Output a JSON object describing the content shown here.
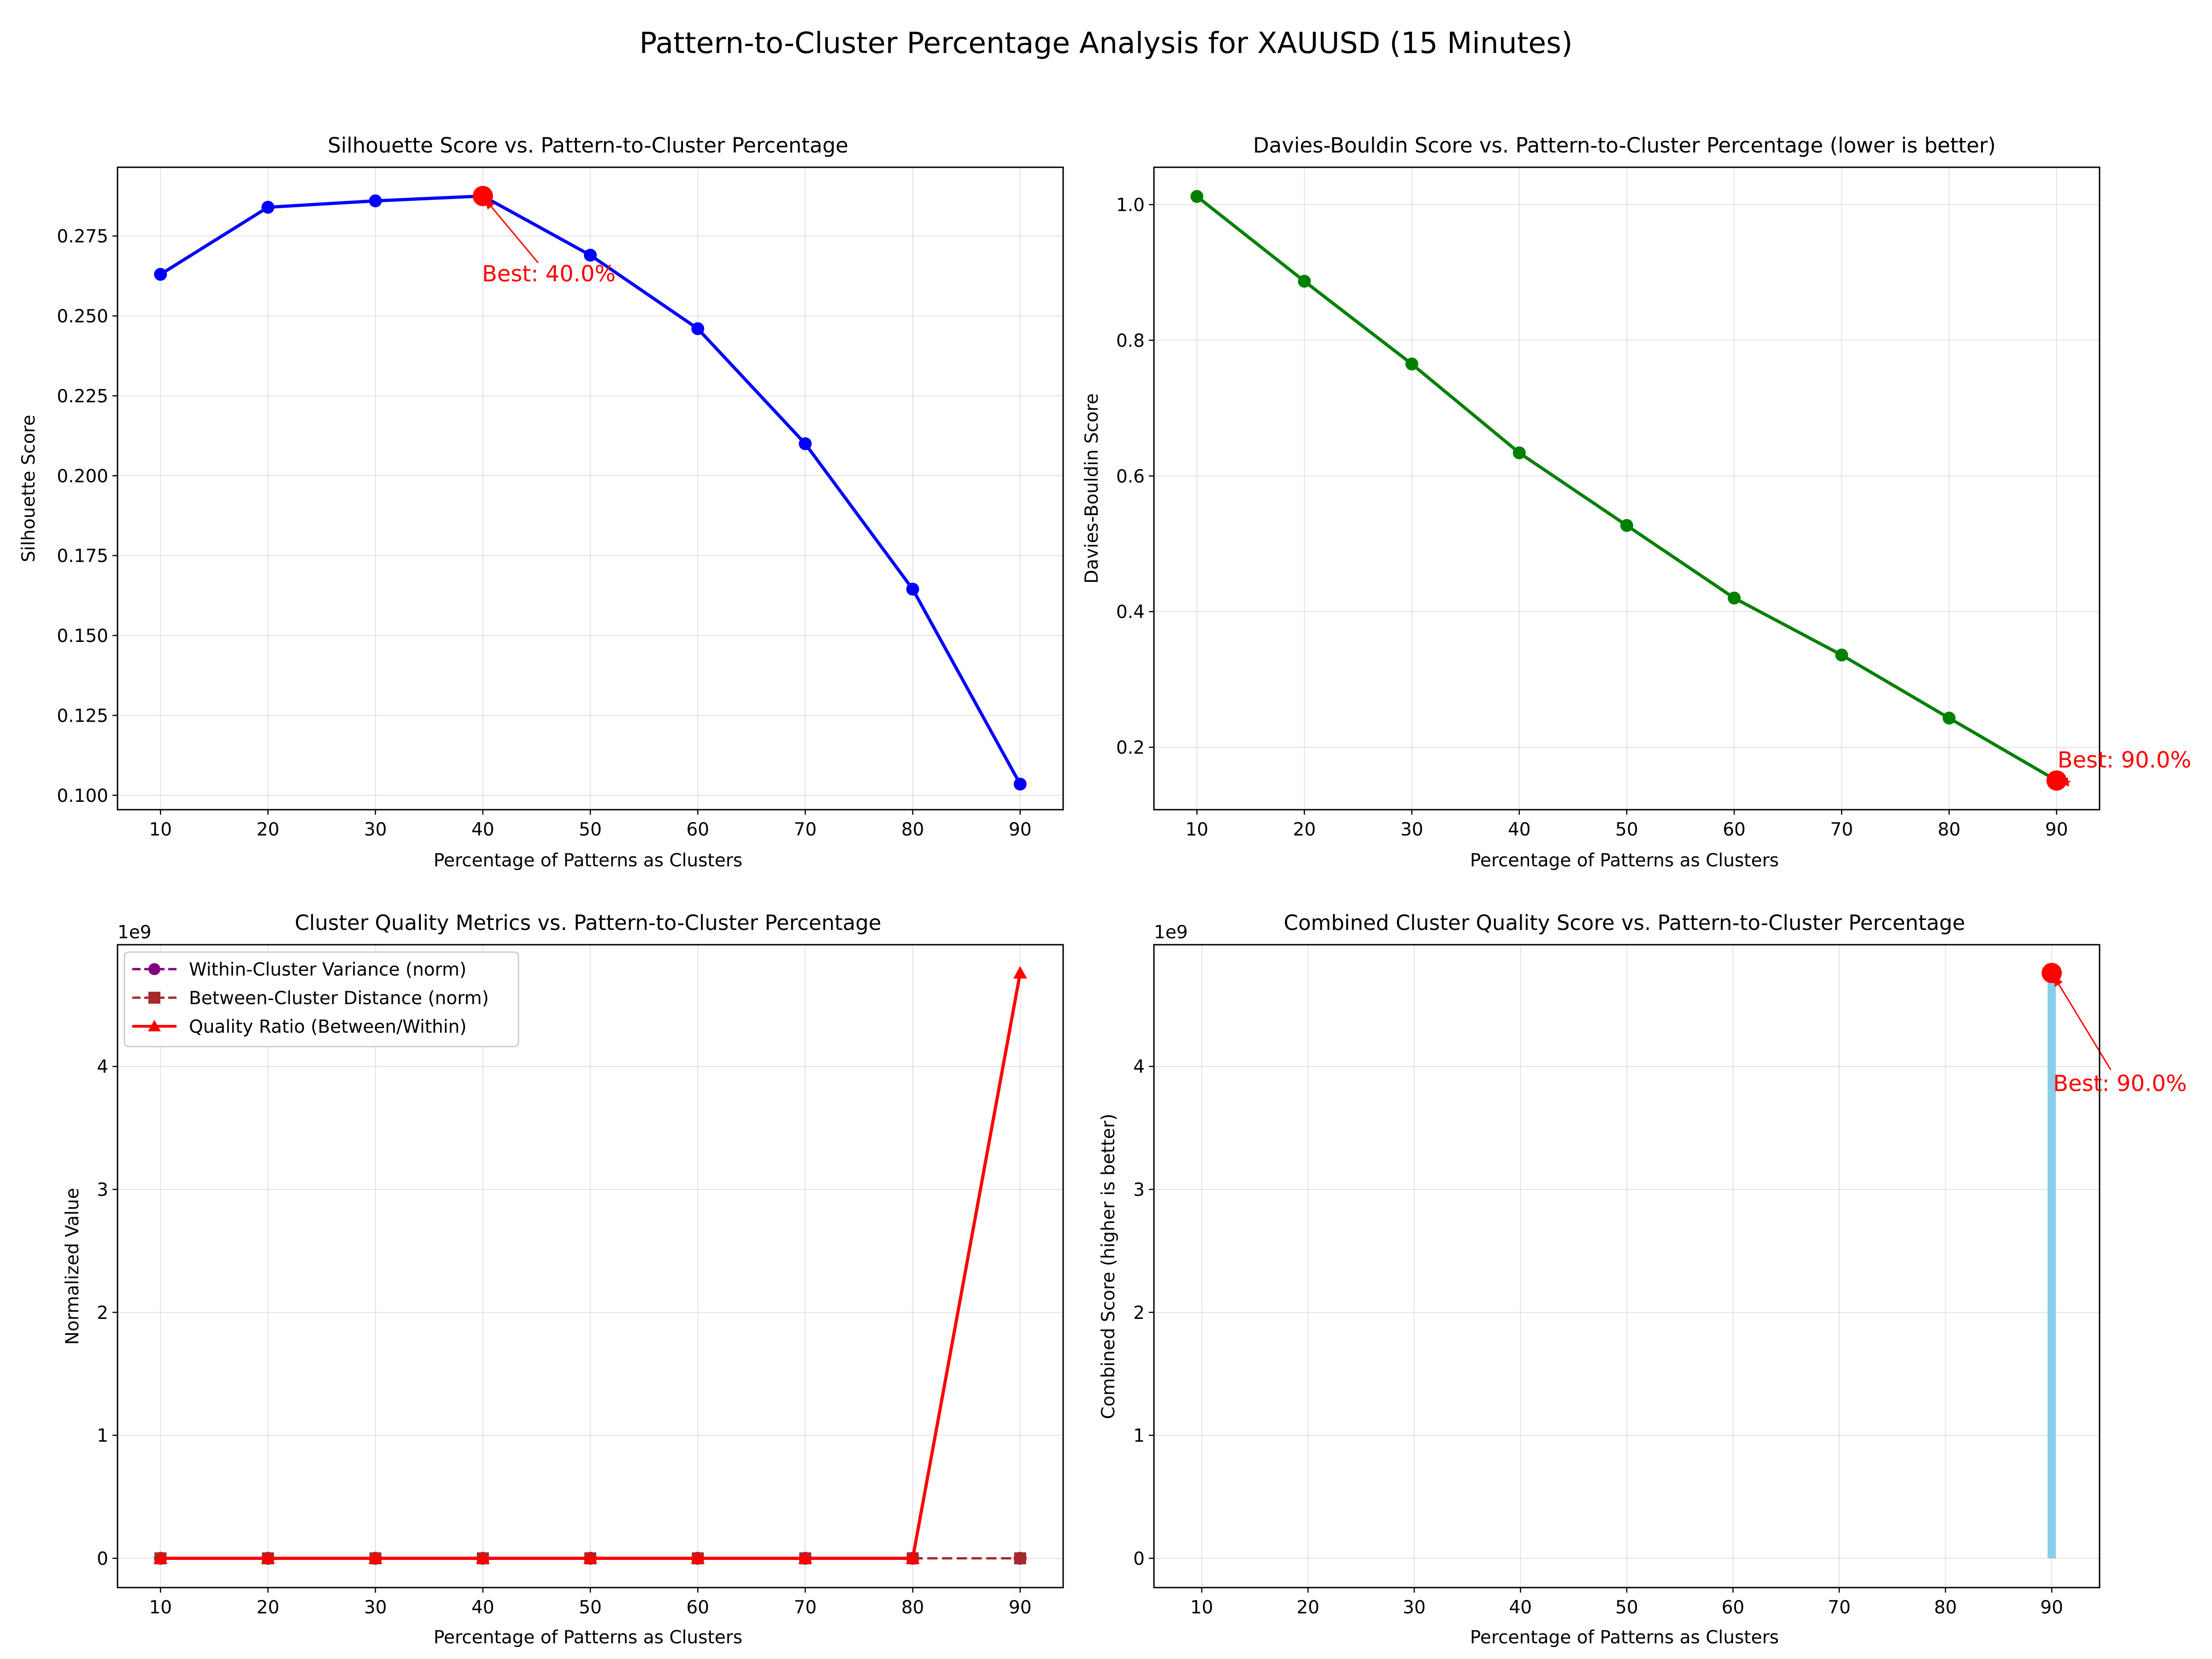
{
  "figure": {
    "title": "Pattern-to-Cluster Percentage Analysis for XAUUSD (15 Minutes)"
  },
  "chart_data": [
    {
      "type": "line",
      "title": "Silhouette Score vs. Pattern-to-Cluster Percentage",
      "xlabel": "Percentage of Patterns as Clusters",
      "ylabel": "Silhouette Score",
      "x": [
        10,
        20,
        30,
        40,
        50,
        60,
        70,
        80,
        90
      ],
      "xlim": [
        6,
        94
      ],
      "ylim": [
        0.0955,
        0.2965
      ],
      "xticks": [
        10,
        20,
        30,
        40,
        50,
        60,
        70,
        80,
        90
      ],
      "yticks": [
        0.1,
        0.125,
        0.15,
        0.175,
        0.2,
        0.225,
        0.25,
        0.275
      ],
      "ytick_labels": [
        "0.100",
        "0.125",
        "0.150",
        "0.175",
        "0.200",
        "0.225",
        "0.250",
        "0.275"
      ],
      "series": [
        {
          "values": [
            0.263,
            0.284,
            0.286,
            0.2875,
            0.269,
            0.246,
            0.21,
            0.1645,
            0.1035
          ],
          "color": "#0000ff",
          "marker": "circle"
        }
      ],
      "highlight": {
        "x": 40,
        "y": 0.2875,
        "color": "#ff0000"
      },
      "annotation": {
        "text": "Best: 40.0%",
        "color": "#ff0000"
      },
      "grid": true
    },
    {
      "type": "line",
      "title": "Davies-Bouldin Score vs. Pattern-to-Cluster Percentage (lower is better)",
      "xlabel": "Percentage of Patterns as Clusters",
      "ylabel": "Davies-Bouldin Score",
      "x": [
        10,
        20,
        30,
        40,
        50,
        60,
        70,
        80,
        90
      ],
      "xlim": [
        6,
        94
      ],
      "ylim": [
        0.108,
        1.055
      ],
      "xticks": [
        10,
        20,
        30,
        40,
        50,
        60,
        70,
        80,
        90
      ],
      "yticks": [
        0.2,
        0.4,
        0.6,
        0.8,
        1.0
      ],
      "ytick_labels": [
        "0.2",
        "0.4",
        "0.6",
        "0.8",
        "1.0"
      ],
      "series": [
        {
          "values": [
            1.012,
            0.887,
            0.765,
            0.634,
            0.527,
            0.42,
            0.336,
            0.243,
            0.151
          ],
          "color": "#008000",
          "marker": "circle"
        }
      ],
      "highlight": {
        "x": 90,
        "y": 0.151,
        "color": "#ff0000"
      },
      "annotation": {
        "text": "Best: 90.0%",
        "color": "#ff0000"
      },
      "grid": true
    },
    {
      "type": "line",
      "title": "Cluster Quality Metrics vs. Pattern-to-Cluster Percentage",
      "xlabel": "Percentage of Patterns as Clusters",
      "ylabel": "Normalized Value",
      "offset_label": "1e9",
      "x": [
        10,
        20,
        30,
        40,
        50,
        60,
        70,
        80,
        90
      ],
      "xlim": [
        6,
        94
      ],
      "ylim": [
        -0.238,
        4.99
      ],
      "xticks": [
        10,
        20,
        30,
        40,
        50,
        60,
        70,
        80,
        90
      ],
      "yticks": [
        0,
        1,
        2,
        3,
        4
      ],
      "ytick_labels": [
        "0",
        "1",
        "2",
        "3",
        "4"
      ],
      "legend_position": "upper-left",
      "series": [
        {
          "name": "Within-Cluster Variance (norm)",
          "values": [
            0,
            0,
            0,
            0,
            0,
            0,
            0,
            0,
            0
          ],
          "color": "#800080",
          "dash": "dashed",
          "marker": "circle"
        },
        {
          "name": "Between-Cluster Distance (norm)",
          "values": [
            0,
            0,
            0,
            0,
            0,
            0,
            0,
            0,
            0
          ],
          "color": "#a52a2a",
          "dash": "dashed",
          "marker": "square"
        },
        {
          "name": "Quality Ratio (Between/Within)",
          "values": [
            0,
            0,
            0,
            0,
            0,
            0,
            0,
            0,
            4.76
          ],
          "color": "#ff0000",
          "dash": "solid",
          "marker": "triangle"
        }
      ],
      "grid": true
    },
    {
      "type": "bar",
      "title": "Combined Cluster Quality Score vs. Pattern-to-Cluster Percentage",
      "xlabel": "Percentage of Patterns as Clusters",
      "ylabel": "Combined Score (higher is better)",
      "offset_label": "1e9",
      "x": [
        10,
        20,
        30,
        40,
        50,
        60,
        70,
        80,
        90
      ],
      "values": [
        0,
        0,
        0,
        0,
        0,
        0,
        0,
        0,
        4.76
      ],
      "xlim": [
        5.5,
        94.5
      ],
      "ylim": [
        -0.238,
        4.99
      ],
      "xticks": [
        10,
        20,
        30,
        40,
        50,
        60,
        70,
        80,
        90
      ],
      "yticks": [
        0,
        1,
        2,
        3,
        4
      ],
      "ytick_labels": [
        "0",
        "1",
        "2",
        "3",
        "4"
      ],
      "bar_color": "#87ceeb",
      "highlight": {
        "x": 90,
        "y": 4.76,
        "color": "#ff0000"
      },
      "annotation": {
        "text": "Best: 90.0%",
        "color": "#ff0000"
      },
      "grid": true
    }
  ]
}
